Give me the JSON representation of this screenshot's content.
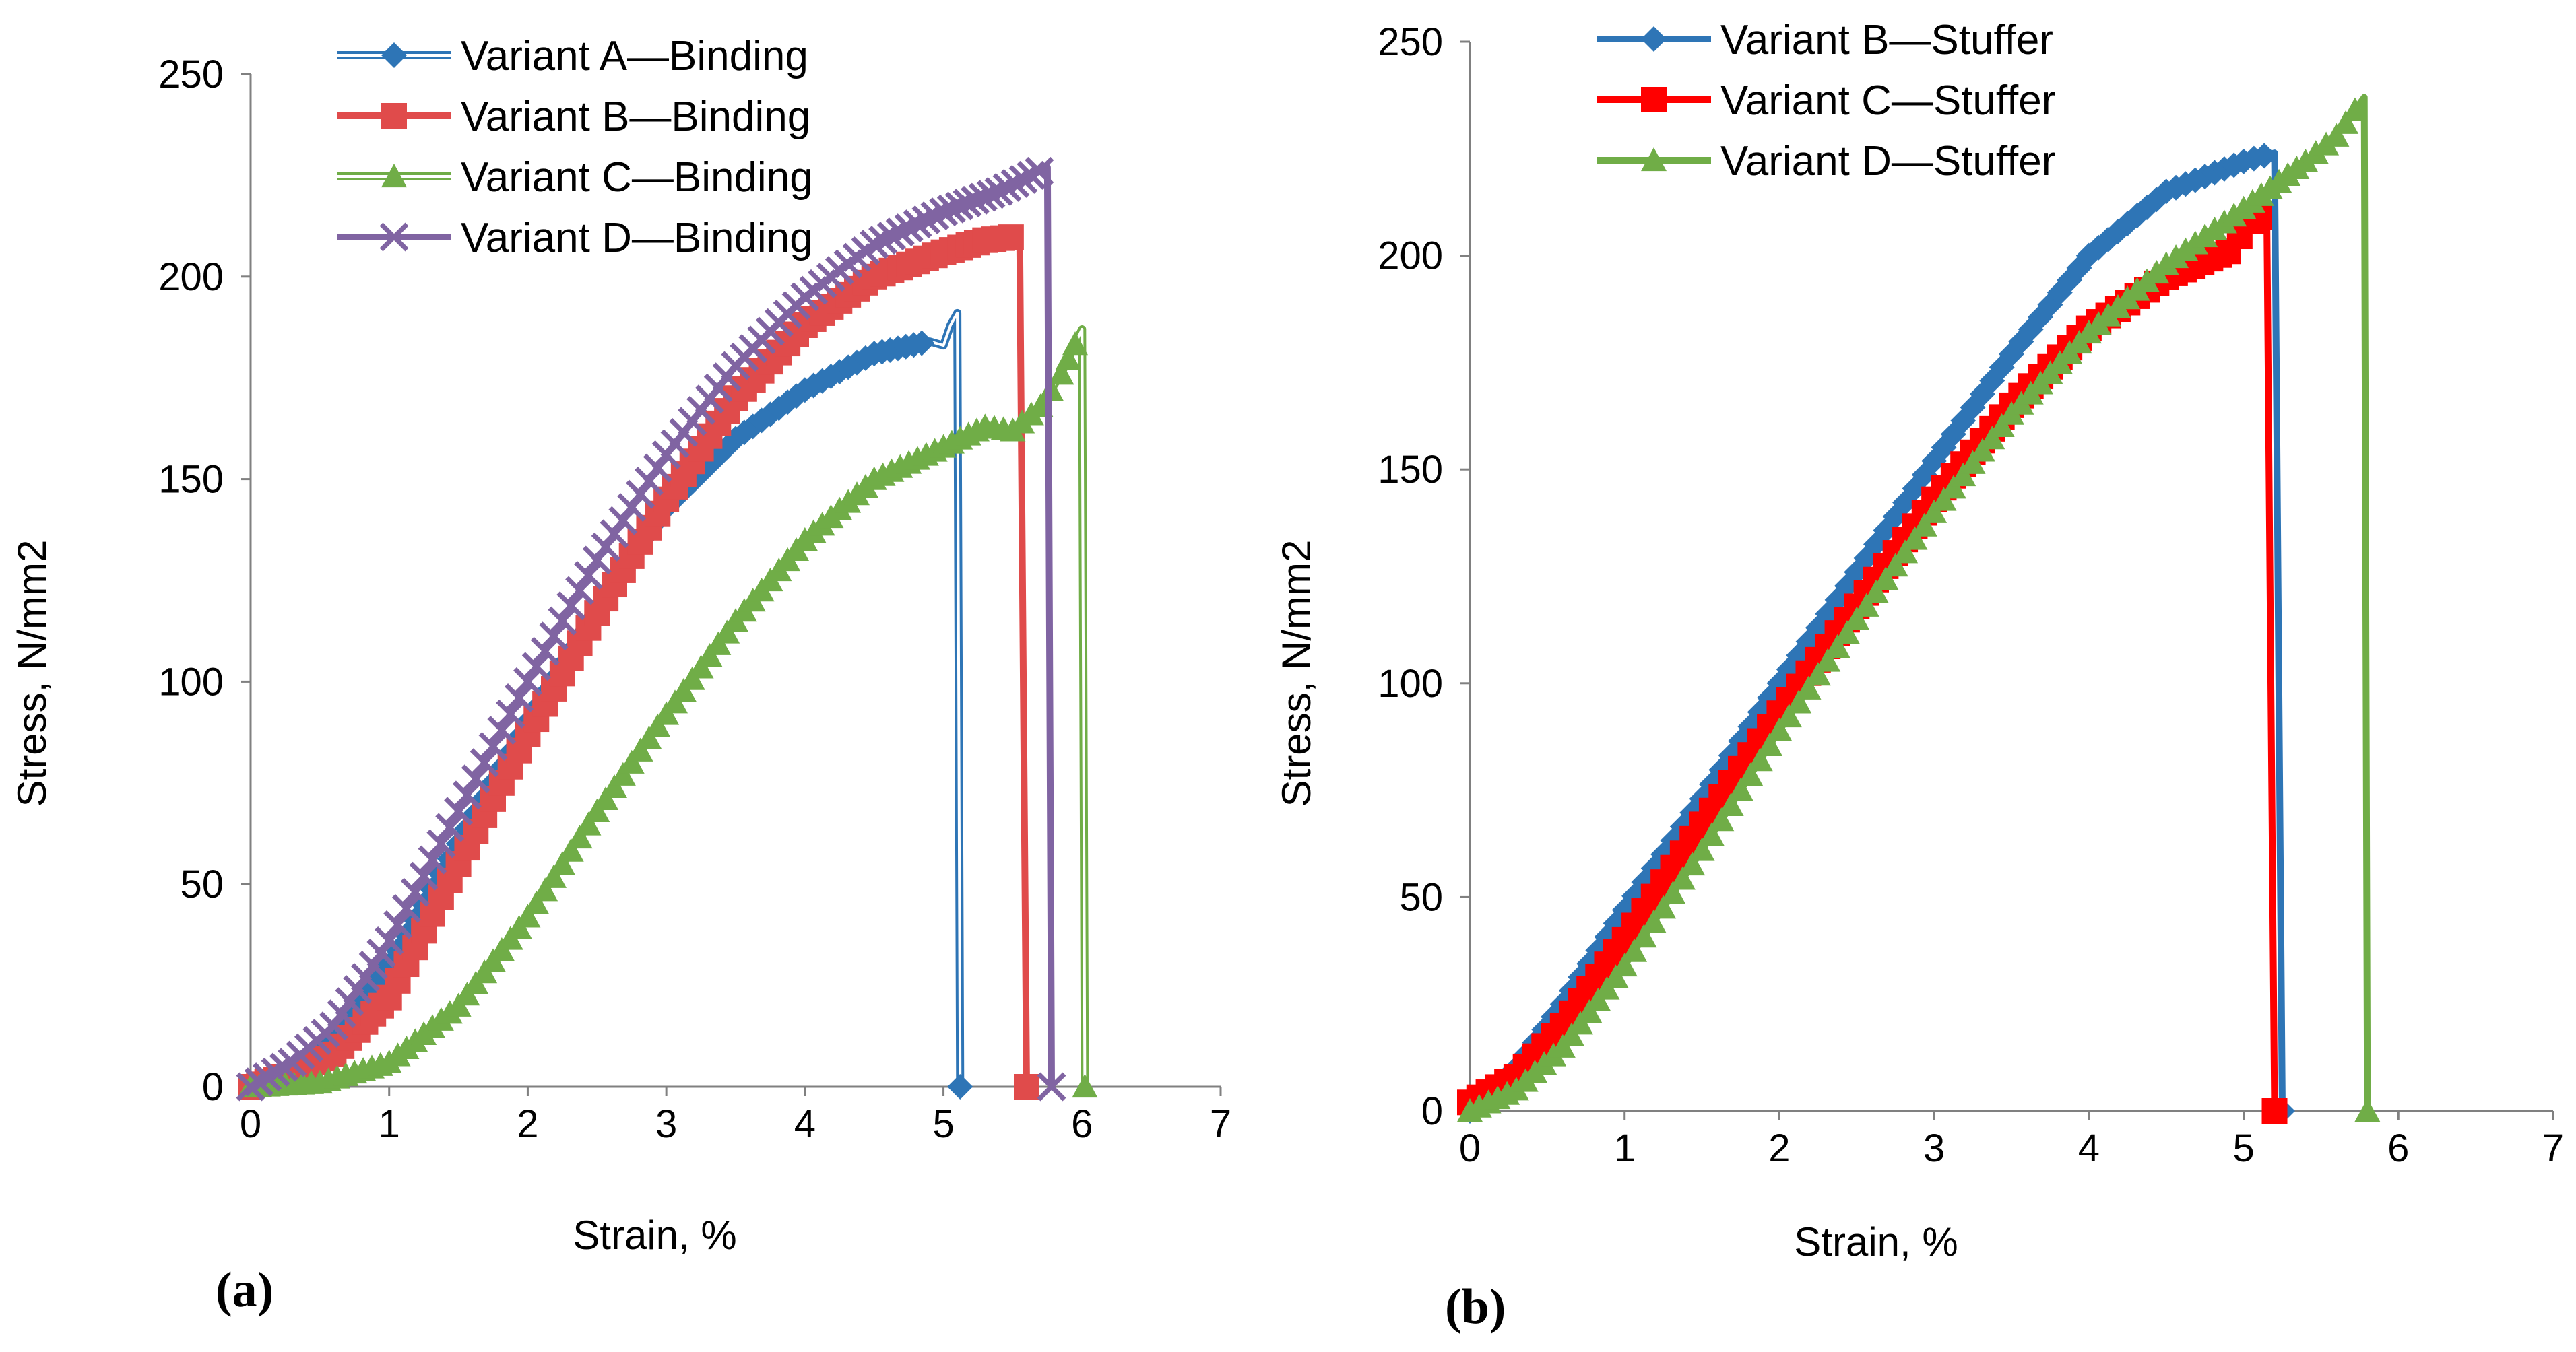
{
  "chart_data": [
    {
      "type": "line",
      "panel_label": "(a)",
      "xlabel": "Strain, %",
      "ylabel": "Stress, N/mm2",
      "xlim": [
        0,
        7
      ],
      "ylim": [
        0,
        250
      ],
      "xticks": [
        0,
        1,
        2,
        3,
        4,
        5,
        6,
        7
      ],
      "yticks": [
        0,
        50,
        100,
        150,
        200,
        250
      ],
      "legend_position": "top-center",
      "series": [
        {
          "name": "Variant A—Binding",
          "color": "#2E75B6",
          "marker": "diamond",
          "style": "double",
          "points": [
            [
              0,
              0
            ],
            [
              0.3,
              4
            ],
            [
              0.6,
              12
            ],
            [
              1.0,
              30
            ],
            [
              1.5,
              60
            ],
            [
              2.0,
              90
            ],
            [
              2.5,
              118
            ],
            [
              3.0,
              143
            ],
            [
              3.5,
              160
            ],
            [
              4.0,
              172
            ],
            [
              4.5,
              181
            ],
            [
              4.9,
              184
            ],
            [
              5.0,
              183
            ],
            [
              5.05,
              188
            ],
            [
              5.1,
              191
            ],
            [
              5.12,
              0
            ]
          ]
        },
        {
          "name": "Variant B—Binding",
          "color": "#E04B4B",
          "marker": "square",
          "style": "solid",
          "points": [
            [
              0,
              0
            ],
            [
              0.3,
              3
            ],
            [
              0.6,
              8
            ],
            [
              1.0,
              22
            ],
            [
              1.5,
              55
            ],
            [
              2.0,
              87
            ],
            [
              2.5,
              117
            ],
            [
              3.0,
              145
            ],
            [
              3.5,
              170
            ],
            [
              4.0,
              188
            ],
            [
              4.5,
              200
            ],
            [
              5.0,
              206
            ],
            [
              5.3,
              209
            ],
            [
              5.55,
              210
            ],
            [
              5.6,
              0
            ]
          ]
        },
        {
          "name": "Variant C—Binding",
          "color": "#70AD47",
          "marker": "triangle",
          "style": "double",
          "points": [
            [
              0,
              0
            ],
            [
              0.5,
              1
            ],
            [
              1.0,
              6
            ],
            [
              1.5,
              20
            ],
            [
              2.0,
              42
            ],
            [
              2.5,
              68
            ],
            [
              3.0,
              92
            ],
            [
              3.5,
              115
            ],
            [
              4.0,
              135
            ],
            [
              4.5,
              150
            ],
            [
              5.0,
              158
            ],
            [
              5.3,
              163
            ],
            [
              5.5,
              162
            ],
            [
              5.7,
              168
            ],
            [
              5.85,
              176
            ],
            [
              6.0,
              187
            ],
            [
              6.02,
              0
            ]
          ]
        },
        {
          "name": "Variant D—Binding",
          "color": "#8064A2",
          "marker": "x",
          "style": "solid",
          "points": [
            [
              0,
              0
            ],
            [
              0.3,
              6
            ],
            [
              0.6,
              15
            ],
            [
              1.0,
              36
            ],
            [
              1.5,
              68
            ],
            [
              2.0,
              100
            ],
            [
              2.5,
              130
            ],
            [
              3.0,
              156
            ],
            [
              3.5,
              178
            ],
            [
              4.0,
              195
            ],
            [
              4.5,
              208
            ],
            [
              5.0,
              216
            ],
            [
              5.4,
              221
            ],
            [
              5.75,
              227
            ],
            [
              5.78,
              0
            ]
          ]
        }
      ]
    },
    {
      "type": "line",
      "panel_label": "(b)",
      "xlabel": "Strain, %",
      "ylabel": "Stress, N/mm2",
      "xlim": [
        0,
        7
      ],
      "ylim": [
        0,
        250
      ],
      "xticks": [
        0,
        1,
        2,
        3,
        4,
        5,
        6,
        7
      ],
      "yticks": [
        0,
        50,
        100,
        150,
        200,
        250
      ],
      "legend_position": "top-center",
      "series": [
        {
          "name": "Variant B—Stuffer",
          "color": "#2E75B6",
          "marker": "diamond",
          "style": "solid",
          "points": [
            [
              0,
              0
            ],
            [
              0.3,
              10
            ],
            [
              0.6,
              25
            ],
            [
              1.0,
              47
            ],
            [
              1.5,
              73
            ],
            [
              2.0,
              100
            ],
            [
              2.5,
              126
            ],
            [
              3.0,
              152
            ],
            [
              3.5,
              177
            ],
            [
              4.0,
              200
            ],
            [
              4.5,
              215
            ],
            [
              5.0,
              222
            ],
            [
              5.2,
              224
            ],
            [
              5.25,
              0
            ]
          ]
        },
        {
          "name": "Variant C—Stuffer",
          "color": "#FF0000",
          "marker": "square",
          "style": "solid",
          "points": [
            [
              0,
              2
            ],
            [
              0.3,
              8
            ],
            [
              0.6,
              20
            ],
            [
              1.0,
              40
            ],
            [
              1.5,
              67
            ],
            [
              2.0,
              93
            ],
            [
              2.5,
              118
            ],
            [
              3.0,
              143
            ],
            [
              3.5,
              165
            ],
            [
              4.0,
              183
            ],
            [
              4.5,
              195
            ],
            [
              4.9,
              201
            ],
            [
              5.05,
              208
            ],
            [
              5.15,
              210
            ],
            [
              5.2,
              0
            ]
          ]
        },
        {
          "name": "Variant D—Stuffer",
          "color": "#70AD47",
          "marker": "triangle",
          "style": "solid",
          "points": [
            [
              0,
              0
            ],
            [
              0.3,
              5
            ],
            [
              0.6,
              15
            ],
            [
              1.0,
              34
            ],
            [
              1.5,
              61
            ],
            [
              2.0,
              89
            ],
            [
              2.5,
              115
            ],
            [
              3.0,
              140
            ],
            [
              3.5,
              163
            ],
            [
              4.0,
              182
            ],
            [
              4.5,
              198
            ],
            [
              5.0,
              211
            ],
            [
              5.4,
              222
            ],
            [
              5.6,
              228
            ],
            [
              5.78,
              237
            ],
            [
              5.8,
              0
            ]
          ]
        }
      ]
    }
  ]
}
